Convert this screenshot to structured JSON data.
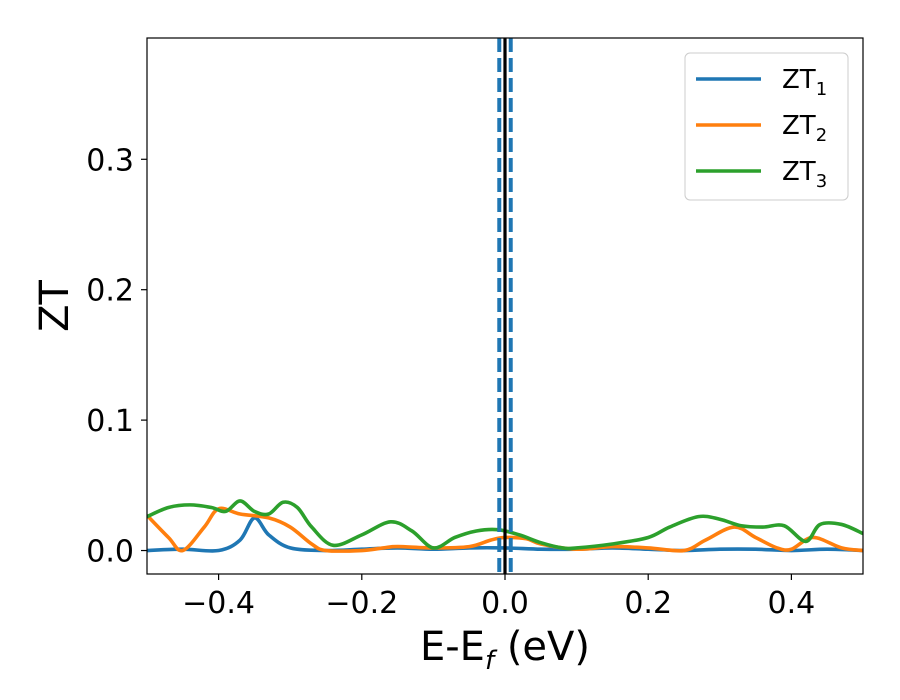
{
  "chart_data": {
    "type": "line",
    "xlabel_main": "E-E",
    "xlabel_sub": "f",
    "xlabel_unit": " (eV)",
    "ylabel": "ZT",
    "xlim": [
      -0.5,
      0.5
    ],
    "ylim": [
      -0.018,
      0.393
    ],
    "x_ticks": [
      -0.4,
      -0.2,
      0.0,
      0.2,
      0.4
    ],
    "x_tick_labels": [
      "−0.4",
      "−0.2",
      "0.0",
      "0.2",
      "0.4"
    ],
    "y_ticks": [
      0.0,
      0.1,
      0.2,
      0.3
    ],
    "y_tick_labels": [
      "0.0",
      "0.1",
      "0.2",
      "0.3"
    ],
    "grid": false,
    "legend_position": "top-right",
    "vertical_lines": [
      {
        "x": 0.0,
        "style": "solid",
        "color": "#000000"
      },
      {
        "x": -0.008,
        "style": "dashed",
        "color": "#1f77b4"
      },
      {
        "x": 0.008,
        "style": "dashed",
        "color": "#1f77b4"
      }
    ],
    "series": [
      {
        "name_main": "ZT",
        "name_sub": "1",
        "color": "#1f77b4",
        "x": [
          -0.5,
          -0.45,
          -0.4,
          -0.37,
          -0.35,
          -0.33,
          -0.3,
          -0.25,
          -0.2,
          -0.15,
          -0.1,
          -0.05,
          0.0,
          0.05,
          0.1,
          0.15,
          0.2,
          0.25,
          0.3,
          0.35,
          0.4,
          0.45,
          0.5
        ],
        "y": [
          0.0,
          0.001,
          0.0,
          0.008,
          0.025,
          0.012,
          0.002,
          0.0,
          0.001,
          0.002,
          0.001,
          0.002,
          0.002,
          0.001,
          0.001,
          0.002,
          0.001,
          0.0,
          0.001,
          0.001,
          0.0,
          0.001,
          0.0
        ]
      },
      {
        "name_main": "ZT",
        "name_sub": "2",
        "color": "#ff7f0e",
        "x": [
          -0.5,
          -0.47,
          -0.45,
          -0.42,
          -0.4,
          -0.37,
          -0.33,
          -0.3,
          -0.27,
          -0.25,
          -0.2,
          -0.17,
          -0.15,
          -0.1,
          -0.05,
          -0.02,
          0.0,
          0.03,
          0.05,
          0.1,
          0.15,
          0.2,
          0.25,
          0.28,
          0.32,
          0.35,
          0.38,
          0.4,
          0.43,
          0.47,
          0.5
        ],
        "y": [
          0.027,
          0.01,
          0.0,
          0.018,
          0.032,
          0.028,
          0.025,
          0.018,
          0.005,
          0.0,
          0.0,
          0.002,
          0.003,
          0.002,
          0.003,
          0.008,
          0.01,
          0.009,
          0.005,
          0.001,
          0.003,
          0.002,
          0.0,
          0.008,
          0.018,
          0.01,
          0.002,
          0.001,
          0.01,
          0.002,
          0.0
        ]
      },
      {
        "name_main": "ZT",
        "name_sub": "3",
        "color": "#2ca02c",
        "x": [
          -0.5,
          -0.47,
          -0.44,
          -0.41,
          -0.39,
          -0.37,
          -0.35,
          -0.33,
          -0.31,
          -0.29,
          -0.27,
          -0.24,
          -0.2,
          -0.16,
          -0.13,
          -0.1,
          -0.07,
          -0.04,
          -0.01,
          0.02,
          0.05,
          0.08,
          0.1,
          0.15,
          0.2,
          0.23,
          0.27,
          0.3,
          0.33,
          0.36,
          0.39,
          0.42,
          0.44,
          0.47,
          0.5
        ],
        "y": [
          0.026,
          0.033,
          0.035,
          0.033,
          0.03,
          0.038,
          0.03,
          0.028,
          0.037,
          0.033,
          0.018,
          0.004,
          0.012,
          0.022,
          0.015,
          0.002,
          0.01,
          0.015,
          0.016,
          0.012,
          0.006,
          0.002,
          0.002,
          0.005,
          0.01,
          0.018,
          0.026,
          0.024,
          0.019,
          0.018,
          0.019,
          0.007,
          0.02,
          0.02,
          0.013
        ]
      }
    ]
  }
}
